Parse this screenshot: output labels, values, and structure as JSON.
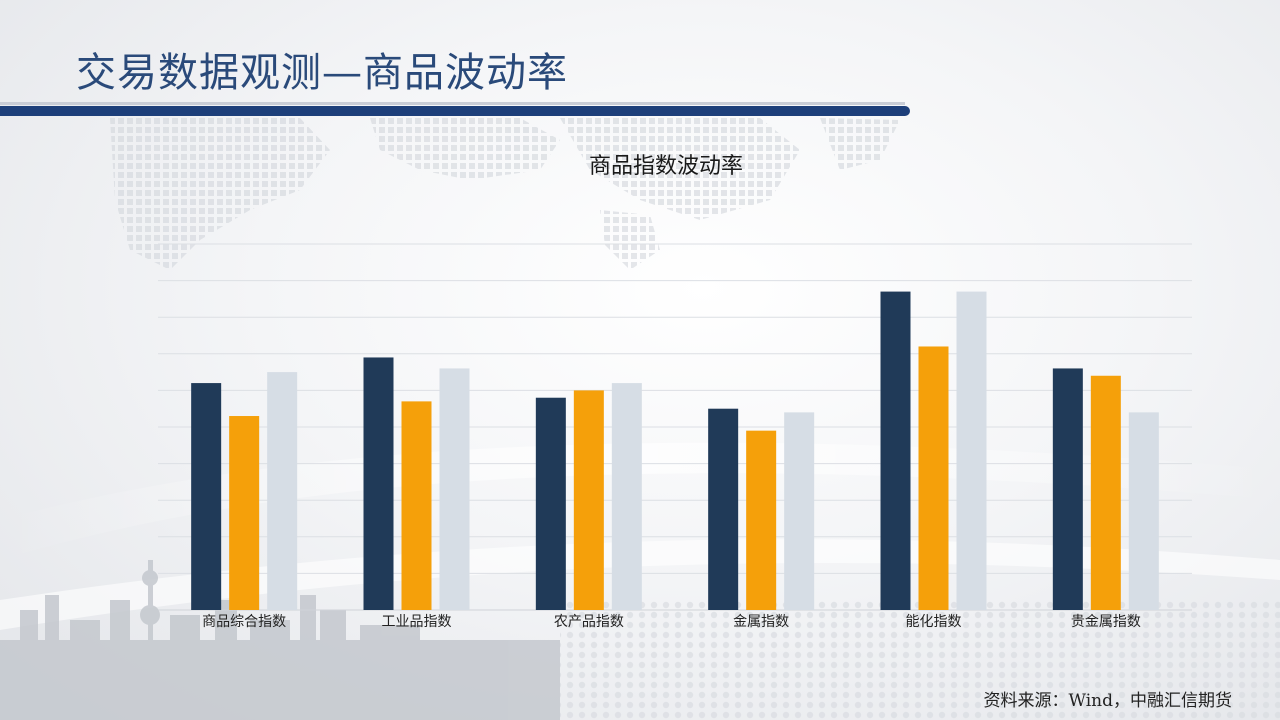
{
  "slide": {
    "title": "交易数据观测—商品波动率",
    "source": "资料来源：Wind，中融汇信期货"
  },
  "colors": {
    "series_1": "#203a58",
    "series_2": "#f5a00a",
    "series_3": "#d6dde5",
    "title": "#2a4a7a",
    "title_rule": "#1d3f7a",
    "gridline": "#dcdfe4"
  },
  "chart_data": {
    "type": "bar",
    "title": "商品指数波动率",
    "xlabel": "",
    "ylabel": "",
    "categories": [
      "商品综合指数",
      "工业品指数",
      "农产品指数",
      "金属指数",
      "能化指数",
      "贵金属指数"
    ],
    "series": [
      {
        "values": [
          6.2,
          6.9,
          5.8,
          5.5,
          8.7,
          6.6
        ]
      },
      {
        "values": [
          5.3,
          5.7,
          6.0,
          4.9,
          7.2,
          6.4
        ]
      },
      {
        "values": [
          6.5,
          6.6,
          6.2,
          5.4,
          8.7,
          5.4
        ]
      }
    ],
    "ylim": [
      0,
      10
    ],
    "grid": true,
    "legend": "none"
  }
}
